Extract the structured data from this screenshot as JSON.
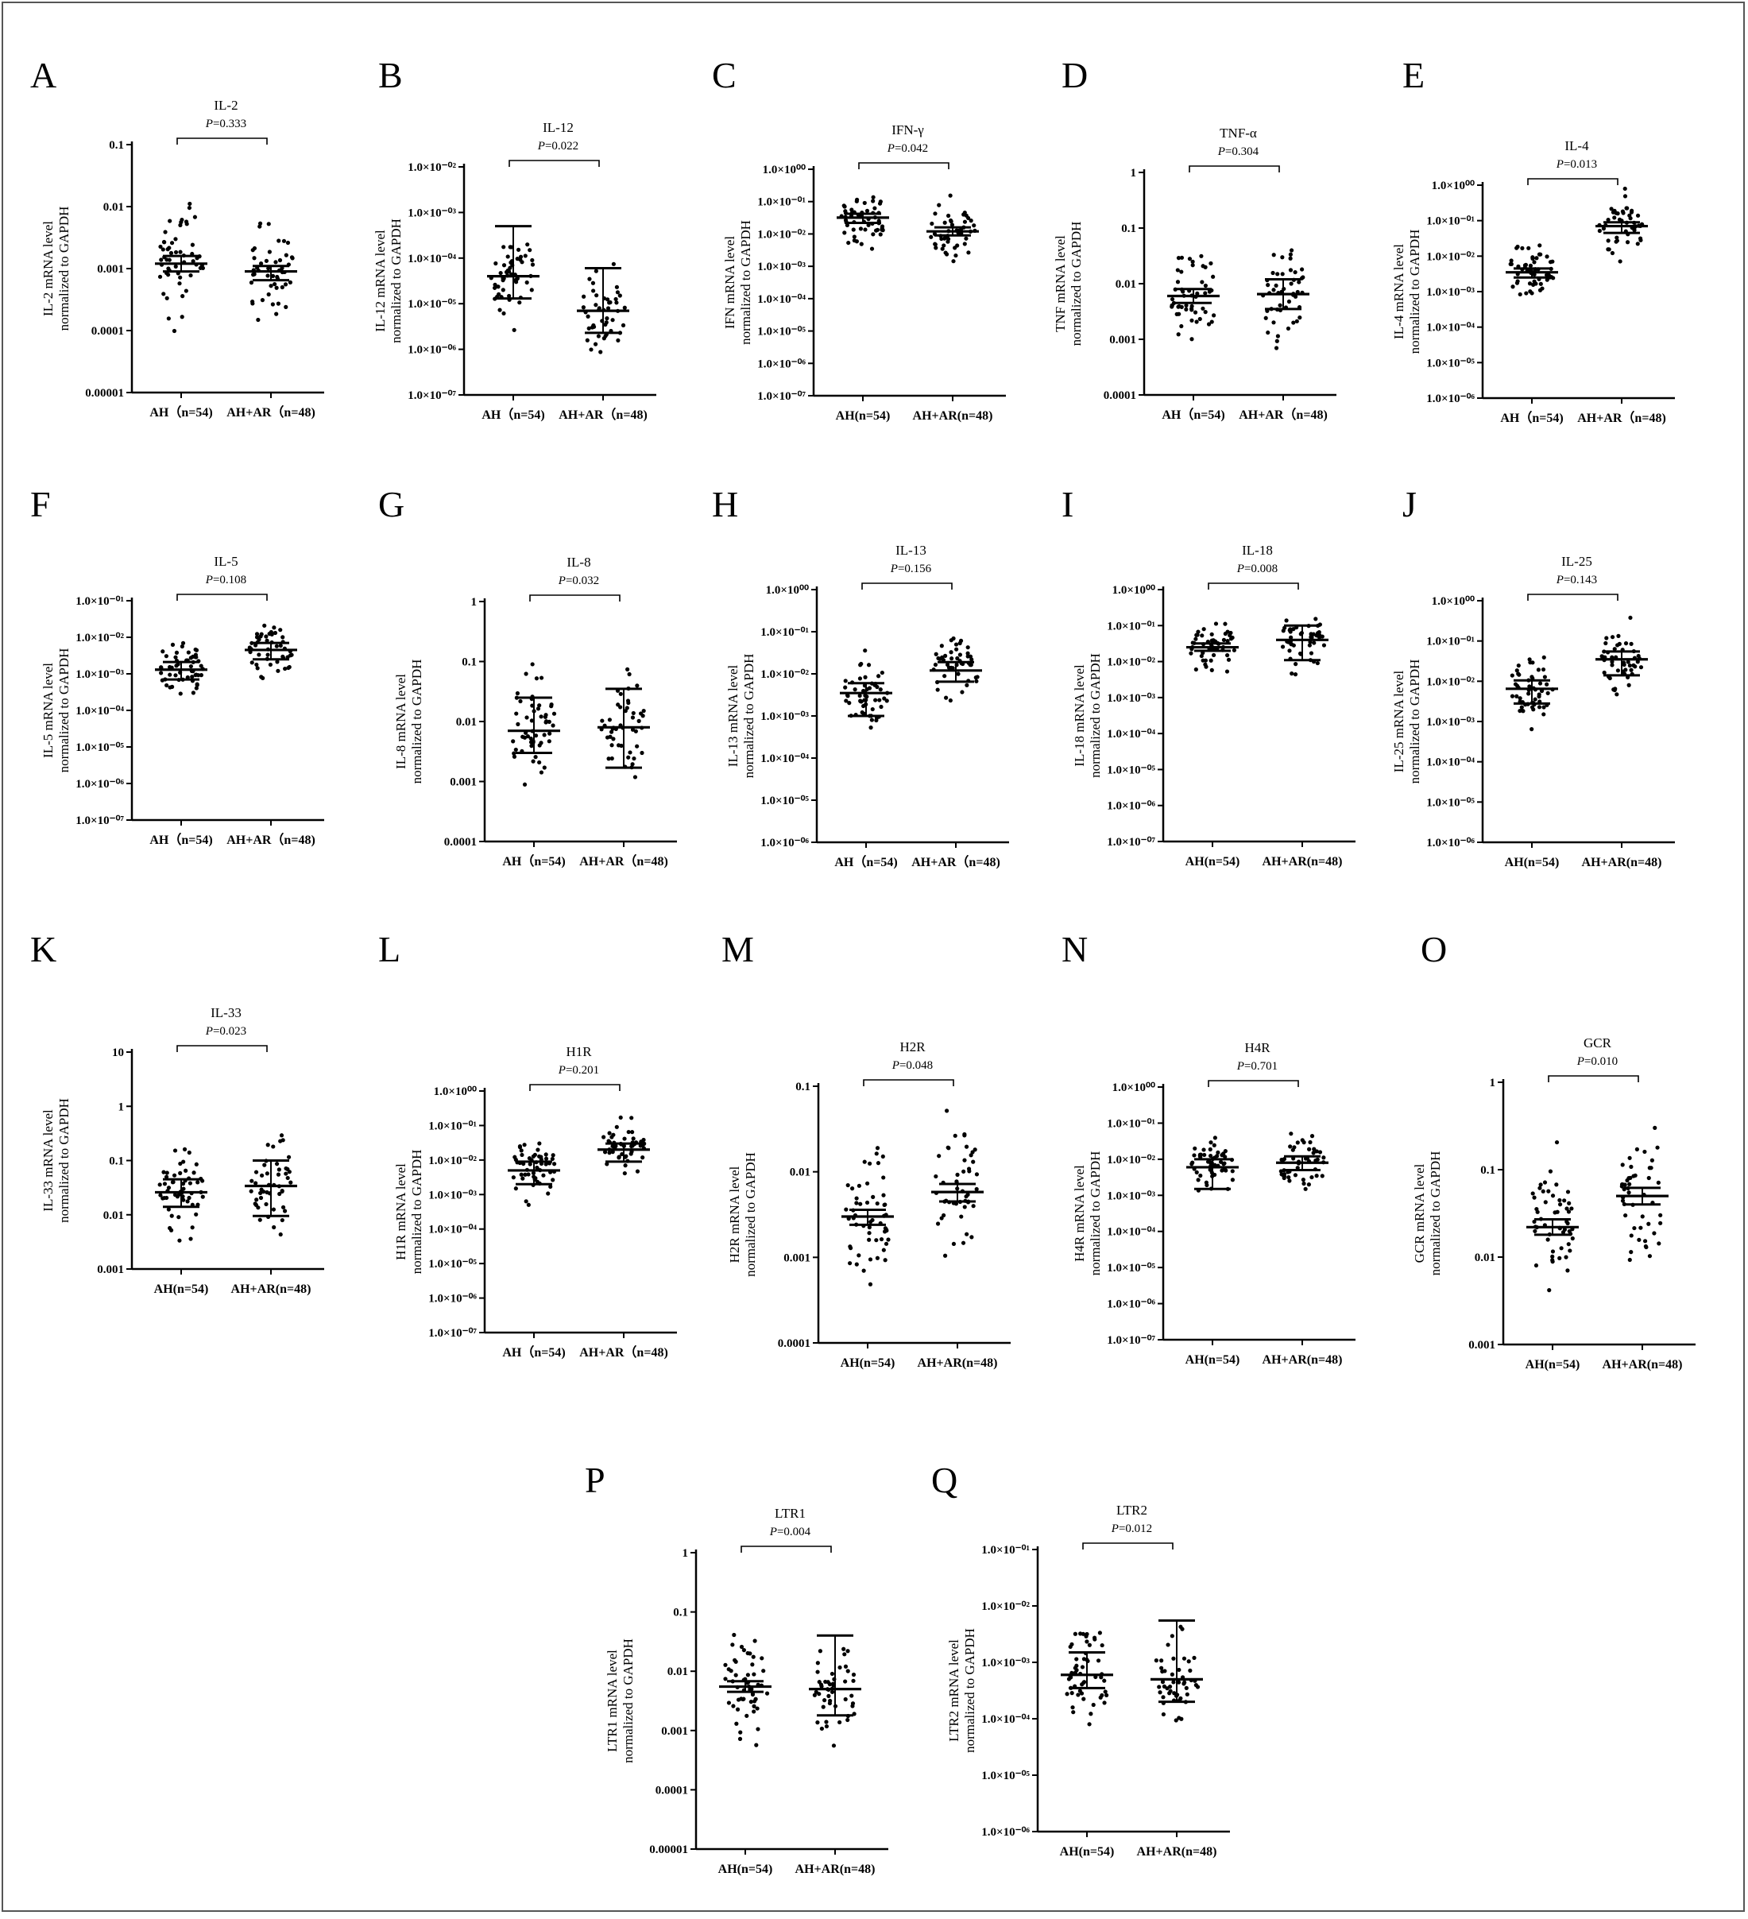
{
  "chart_data": [
    {
      "type": "scatter",
      "panel": "A",
      "title": "IL-2",
      "p": "P=0.333",
      "ylabel": [
        "IL-2 mRNA level",
        "normalized to GAPDH"
      ],
      "categories": [
        "AH（n=54)",
        "AH+AR（n=48)"
      ],
      "yscale": "log",
      "ylim": [
        1e-05,
        0.1
      ],
      "yticks": [
        "0.1",
        "0.01",
        "0.001",
        "0.0001",
        "0.00001"
      ],
      "groups": [
        {
          "mean": 0.0012,
          "err_lo": 0.0009,
          "err_hi": 0.0016
        },
        {
          "mean": 0.0009,
          "err_lo": 0.00065,
          "err_hi": 0.0011
        }
      ]
    },
    {
      "type": "scatter",
      "panel": "B",
      "title": "IL-12",
      "p": "P=0.022",
      "ylabel": [
        "IL-12 mRNA level",
        "normalized to GAPDH"
      ],
      "categories": [
        "AH（n=54)",
        "AH+AR（n=48)"
      ],
      "yscale": "log",
      "ylim": [
        1e-07,
        0.01
      ],
      "yticks": [
        "1.0×10⁻⁰²",
        "1.0×10⁻⁰³",
        "1.0×10⁻⁰⁴",
        "1.0×10⁻⁰⁵",
        "1.0×10⁻⁰⁶",
        "1.0×10⁻⁰⁷"
      ],
      "groups": [
        {
          "mean": 4e-05,
          "err_lo": 1.3e-05,
          "err_hi": 0.0005
        },
        {
          "mean": 7e-06,
          "err_lo": 2.3e-06,
          "err_hi": 6e-05
        }
      ]
    },
    {
      "type": "scatter",
      "panel": "C",
      "title": "IFN-γ",
      "p": "P=0.042",
      "ylabel": [
        "IFN mRNA level",
        "normalized to GAPDH"
      ],
      "categories": [
        "AH(n=54)",
        "AH+AR(n=48)"
      ],
      "yscale": "log",
      "ylim": [
        1e-07,
        1
      ],
      "yticks": [
        "1.0×10⁰⁰",
        "1.0×10⁻⁰¹",
        "1.0×10⁻⁰²",
        "1.0×10⁻⁰³",
        "1.0×10⁻⁰⁴",
        "1.0×10⁻⁰⁵",
        "1.0×10⁻⁰⁶",
        "1.0×10⁻⁰⁷"
      ],
      "groups": [
        {
          "mean": 0.032,
          "err_lo": 0.022,
          "err_hi": 0.042
        },
        {
          "mean": 0.012,
          "err_lo": 0.009,
          "err_hi": 0.016
        }
      ]
    },
    {
      "type": "scatter",
      "panel": "D",
      "title": "TNF-α",
      "p": "P=0.304",
      "ylabel": [
        "TNF mRNA level",
        "normalized to GAPDH"
      ],
      "categories": [
        "AH（n=54)",
        "AH+AR（n=48)"
      ],
      "yscale": "log",
      "ylim": [
        0.0001,
        1
      ],
      "yticks": [
        "1",
        "0.1",
        "0.01",
        "0.001",
        "0.0001"
      ],
      "groups": [
        {
          "mean": 0.006,
          "err_lo": 0.0045,
          "err_hi": 0.008
        },
        {
          "mean": 0.0065,
          "err_lo": 0.0035,
          "err_hi": 0.012
        }
      ]
    },
    {
      "type": "scatter",
      "panel": "E",
      "title": "IL-4",
      "p": "P=0.013",
      "ylabel": [
        "IL-4 mRNA level",
        "normalized to GAPDH"
      ],
      "categories": [
        "AH（n=54)",
        "AH+AR（n=48)"
      ],
      "yscale": "log",
      "ylim": [
        1e-06,
        1
      ],
      "yticks": [
        "1.0×10⁰⁰",
        "1.0×10⁻⁰¹",
        "1.0×10⁻⁰²",
        "1.0×10⁻⁰³",
        "1.0×10⁻⁰⁴",
        "1.0×10⁻⁰⁵",
        "1.0×10⁻⁰⁶"
      ],
      "groups": [
        {
          "mean": 0.0035,
          "err_lo": 0.0025,
          "err_hi": 0.0045
        },
        {
          "mean": 0.07,
          "err_lo": 0.045,
          "err_hi": 0.09
        }
      ]
    },
    {
      "type": "scatter",
      "panel": "F",
      "title": "IL-5",
      "p": "P=0.108",
      "ylabel": [
        "IL-5 mRNA level",
        "normalized to GAPDH"
      ],
      "categories": [
        "AH（n=54)",
        "AH+AR（n=48)"
      ],
      "yscale": "log",
      "ylim": [
        1e-07,
        0.1
      ],
      "yticks": [
        "1.0×10⁻⁰¹",
        "1.0×10⁻⁰²",
        "1.0×10⁻⁰³",
        "1.0×10⁻⁰⁴",
        "1.0×10⁻⁰⁵",
        "1.0×10⁻⁰⁶",
        "1.0×10⁻⁰⁷"
      ],
      "groups": [
        {
          "mean": 0.0013,
          "err_lo": 0.0007,
          "err_hi": 0.0021
        },
        {
          "mean": 0.0045,
          "err_lo": 0.0025,
          "err_hi": 0.007
        }
      ]
    },
    {
      "type": "scatter",
      "panel": "G",
      "title": "IL-8",
      "p": "P=0.032",
      "ylabel": [
        "IL-8 mRNA level",
        "normalized to GAPDH"
      ],
      "categories": [
        "AH（n=54)",
        "AH+AR（n=48)"
      ],
      "yscale": "log",
      "ylim": [
        0.0001,
        1
      ],
      "yticks": [
        "1",
        "0.1",
        "0.01",
        "0.001",
        "0.0001"
      ],
      "groups": [
        {
          "mean": 0.007,
          "err_lo": 0.003,
          "err_hi": 0.025
        },
        {
          "mean": 0.008,
          "err_lo": 0.0017,
          "err_hi": 0.035
        }
      ]
    },
    {
      "type": "scatter",
      "panel": "H",
      "title": "IL-13",
      "p": "P=0.156",
      "ylabel": [
        "IL-13 mRNA level",
        "normalized to GAPDH"
      ],
      "categories": [
        "AH（n=54)",
        "AH+AR（n=48)"
      ],
      "yscale": "log",
      "ylim": [
        1e-06,
        1
      ],
      "yticks": [
        "1.0×10⁰⁰",
        "1.0×10⁻⁰¹",
        "1.0×10⁻⁰²",
        "1.0×10⁻⁰³",
        "1.0×10⁻⁰⁴",
        "1.0×10⁻⁰⁵",
        "1.0×10⁻⁰⁶"
      ],
      "groups": [
        {
          "mean": 0.0035,
          "err_lo": 0.001,
          "err_hi": 0.006
        },
        {
          "mean": 0.012,
          "err_lo": 0.0065,
          "err_hi": 0.019
        }
      ]
    },
    {
      "type": "scatter",
      "panel": "I",
      "title": "IL-18",
      "p": "P=0.008",
      "ylabel": [
        "IL-18 mRNA level",
        "normalized to GAPDH"
      ],
      "categories": [
        "AH(n=54)",
        "AH+AR(n=48)"
      ],
      "yscale": "log",
      "ylim": [
        1e-07,
        1
      ],
      "yticks": [
        "1.0×10⁰⁰",
        "1.0×10⁻⁰¹",
        "1.0×10⁻⁰²",
        "1.0×10⁻⁰³",
        "1.0×10⁻⁰⁴",
        "1.0×10⁻⁰⁵",
        "1.0×10⁻⁰⁶",
        "1.0×10⁻⁰⁷"
      ],
      "groups": [
        {
          "mean": 0.025,
          "err_lo": 0.02,
          "err_hi": 0.032
        },
        {
          "mean": 0.04,
          "err_lo": 0.011,
          "err_hi": 0.1
        }
      ]
    },
    {
      "type": "scatter",
      "panel": "J",
      "title": "IL-25",
      "p": "P=0.143",
      "ylabel": [
        "IL-25 mRNA level",
        "normalized to GAPDH"
      ],
      "categories": [
        "AH(n=54)",
        "AH+AR(n=48)"
      ],
      "yscale": "log",
      "ylim": [
        1e-06,
        1
      ],
      "yticks": [
        "1.0×10⁰⁰",
        "1.0×10⁻⁰¹",
        "1.0×10⁻⁰²",
        "1.0×10⁻⁰³",
        "1.0×10⁻⁰⁴",
        "1.0×10⁻⁰⁵",
        "1.0×10⁻⁰⁶"
      ],
      "groups": [
        {
          "mean": 0.0065,
          "err_lo": 0.0028,
          "err_hi": 0.0105
        },
        {
          "mean": 0.035,
          "err_lo": 0.014,
          "err_hi": 0.055
        }
      ]
    },
    {
      "type": "scatter",
      "panel": "K",
      "title": "IL-33",
      "p": "P=0.023",
      "ylabel": [
        "IL-33 mRNA level",
        "normalized to GAPDH"
      ],
      "categories": [
        "AH(n=54)",
        "AH+AR(n=48)"
      ],
      "yscale": "log",
      "ylim": [
        0.001,
        10
      ],
      "yticks": [
        "10",
        "1",
        "0.1",
        "0.01",
        "0.001"
      ],
      "groups": [
        {
          "mean": 0.026,
          "err_lo": 0.014,
          "err_hi": 0.045
        },
        {
          "mean": 0.034,
          "err_lo": 0.0095,
          "err_hi": 0.1
        }
      ]
    },
    {
      "type": "scatter",
      "panel": "L",
      "title": "H1R",
      "p": "P=0.201",
      "ylabel": [
        "H1R mRNA level",
        "normalized to GAPDH"
      ],
      "categories": [
        "AH（n=54)",
        "AH+AR（n=48)"
      ],
      "yscale": "log",
      "ylim": [
        1e-07,
        1
      ],
      "yticks": [
        "1.0×10⁰⁰",
        "1.0×10⁻⁰¹",
        "1.0×10⁻⁰²",
        "1.0×10⁻⁰³",
        "1.0×10⁻⁰⁴",
        "1.0×10⁻⁰⁵",
        "1.0×10⁻⁰⁶",
        "1.0×10⁻⁰⁷"
      ],
      "groups": [
        {
          "mean": 0.005,
          "err_lo": 0.002,
          "err_hi": 0.009
        },
        {
          "mean": 0.02,
          "err_lo": 0.009,
          "err_hi": 0.03
        }
      ]
    },
    {
      "type": "scatter",
      "panel": "M",
      "title": "H2R",
      "p": "P=0.048",
      "ylabel": [
        "H2R mRNA level",
        "normalized to GAPDH"
      ],
      "categories": [
        "AH(n=54)",
        "AH+AR(n=48)"
      ],
      "yscale": "log",
      "ylim": [
        0.0001,
        0.1
      ],
      "yticks": [
        "0.1",
        "0.01",
        "0.001",
        "0.0001"
      ],
      "groups": [
        {
          "mean": 0.003,
          "err_lo": 0.0024,
          "err_hi": 0.0036
        },
        {
          "mean": 0.0058,
          "err_lo": 0.0045,
          "err_hi": 0.0072
        }
      ]
    },
    {
      "type": "scatter",
      "panel": "N",
      "title": "H4R",
      "p": "P=0.701",
      "ylabel": [
        "H4R mRNA level",
        "normalized to GAPDH"
      ],
      "categories": [
        "AH(n=54)",
        "AH+AR(n=48)"
      ],
      "yscale": "log",
      "ylim": [
        1e-07,
        1
      ],
      "yticks": [
        "1.0×10⁰⁰",
        "1.0×10⁻⁰¹",
        "1.0×10⁻⁰²",
        "1.0×10⁻⁰³",
        "1.0×10⁻⁰⁴",
        "1.0×10⁻⁰⁵",
        "1.0×10⁻⁰⁶",
        "1.0×10⁻⁰⁷"
      ],
      "groups": [
        {
          "mean": 0.006,
          "err_lo": 0.0015,
          "err_hi": 0.01
        },
        {
          "mean": 0.008,
          "err_lo": 0.005,
          "err_hi": 0.012
        }
      ]
    },
    {
      "type": "scatter",
      "panel": "O",
      "title": "GCR",
      "p": "P=0.010",
      "ylabel": [
        "GCR mRNA level",
        "normalized to GAPDH"
      ],
      "categories": [
        "AH(n=54)",
        "AH+AR(n=48)"
      ],
      "yscale": "log",
      "ylim": [
        0.001,
        1
      ],
      "yticks": [
        "1",
        "0.1",
        "0.01",
        "0.001"
      ],
      "groups": [
        {
          "mean": 0.022,
          "err_lo": 0.018,
          "err_hi": 0.027
        },
        {
          "mean": 0.05,
          "err_lo": 0.04,
          "err_hi": 0.062
        }
      ]
    },
    {
      "type": "scatter",
      "panel": "P",
      "title": "LTR1",
      "p": "P=0.004",
      "ylabel": [
        "LTR1 mRNA level",
        "normalized to GAPDH"
      ],
      "categories": [
        "AH(n=54)",
        "AH+AR(n=48)"
      ],
      "yscale": "log",
      "ylim": [
        1e-05,
        1
      ],
      "yticks": [
        "1",
        "0.1",
        "0.01",
        "0.001",
        "0.0001",
        "0.00001"
      ],
      "groups": [
        {
          "mean": 0.0055,
          "err_lo": 0.0045,
          "err_hi": 0.0068
        },
        {
          "mean": 0.005,
          "err_lo": 0.0018,
          "err_hi": 0.04
        }
      ]
    },
    {
      "type": "scatter",
      "panel": "Q",
      "title": "LTR2",
      "p": "P=0.012",
      "ylabel": [
        "LTR2 mRNA level",
        "normalized to GAPDH"
      ],
      "categories": [
        "AH(n=54)",
        "AH+AR(n=48)"
      ],
      "yscale": "log",
      "ylim": [
        1e-06,
        0.1
      ],
      "yticks": [
        "1.0×10⁻⁰¹",
        "1.0×10⁻⁰²",
        "1.0×10⁻⁰³",
        "1.0×10⁻⁰⁴",
        "1.0×10⁻⁰⁵",
        "1.0×10⁻⁰⁶"
      ],
      "groups": [
        {
          "mean": 0.0006,
          "err_lo": 0.00035,
          "err_hi": 0.0015
        },
        {
          "mean": 0.0005,
          "err_lo": 0.0002,
          "err_hi": 0.0055
        }
      ]
    }
  ]
}
